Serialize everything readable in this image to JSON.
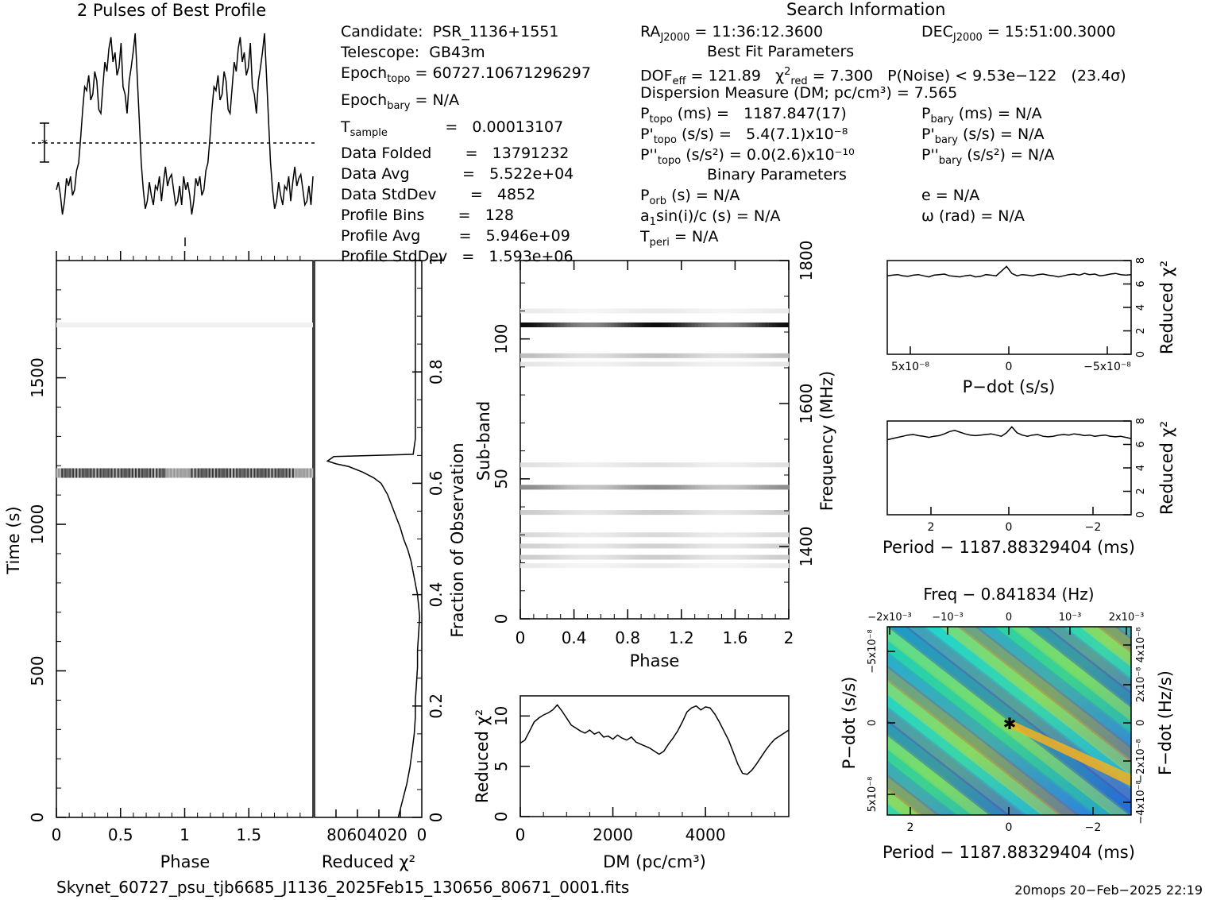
{
  "profile": {
    "title": "2 Pulses of Best Profile",
    "values": [
      0.18,
      0.22,
      0.15,
      0.05,
      0.12,
      0.24,
      0.2,
      0.25,
      0.15,
      0.18,
      0.28,
      0.32,
      0.45,
      0.6,
      0.72,
      0.7,
      0.78,
      0.65,
      0.68,
      0.8,
      0.75,
      0.6,
      0.58,
      0.72,
      0.85,
      0.8,
      0.92,
      0.98,
      0.85,
      0.9,
      0.78,
      0.82,
      0.95,
      0.72,
      0.68,
      0.58,
      0.75,
      0.82,
      0.9,
      1.0,
      0.78,
      0.55,
      0.32,
      0.18,
      0.08,
      0.12,
      0.22,
      0.15,
      0.1,
      0.2,
      0.18,
      0.25,
      0.12,
      0.22,
      0.3,
      0.2,
      0.24,
      0.26,
      0.18,
      0.1,
      0.12,
      0.2,
      0.1,
      0.25,
      0.18,
      0.22,
      0.15,
      0.05,
      0.12,
      0.24,
      0.2,
      0.25,
      0.15,
      0.18,
      0.28,
      0.32,
      0.45,
      0.6,
      0.72,
      0.7,
      0.78,
      0.65,
      0.68,
      0.8,
      0.75,
      0.6,
      0.58,
      0.72,
      0.85,
      0.8,
      0.92,
      0.98,
      0.85,
      0.9,
      0.78,
      0.82,
      0.95,
      0.72,
      0.68,
      0.58,
      0.75,
      0.82,
      0.9,
      1.0,
      0.78,
      0.55,
      0.32,
      0.18,
      0.08,
      0.12,
      0.22,
      0.15,
      0.1,
      0.2,
      0.18,
      0.25,
      0.12,
      0.22,
      0.3,
      0.2,
      0.24,
      0.26,
      0.18,
      0.1,
      0.12,
      0.2,
      0.1,
      0.25
    ]
  },
  "search_info_title": "Search Information",
  "info_col1": [
    {
      "label": "Candidate:  PSR_1136+1551"
    },
    {
      "label": "Telescope:  GB43m"
    },
    {
      "label": "Epoch",
      "sub": "topo",
      "rest": " = 60727.10671296297"
    },
    {
      "label": "Epoch",
      "sub": "bary",
      "rest": " = N/A"
    },
    {
      "label": "T",
      "sub": "sample",
      "rest": "            =   0.00013107"
    },
    {
      "label": "Data Folded       =   13791232"
    },
    {
      "label": "Data Avg           =   5.522e+04"
    },
    {
      "label": "Data StdDev       =   4852"
    },
    {
      "label": "Profile Bins       =   128"
    },
    {
      "label": "Profile Avg        =   5.946e+09"
    },
    {
      "label": "Profile StdDev   =   1.593e+06"
    }
  ],
  "ra_text": "RA",
  "ra_sub": "J2000",
  "ra_val": " = 11:36:12.3600",
  "dec_text": "DEC",
  "dec_sub": "J2000",
  "dec_val": " = 15:51:00.3000",
  "best_fit_title": "Best Fit Parameters",
  "dof_line": "DOF",
  "dof_sub": "eff",
  "dof_val": " = 121.89   χ",
  "chi_sub": "red",
  "chi_val": " = 7.300   P(Noise) < 9.53e−122   (23.4σ)",
  "dm_line": "Dispersion Measure (DM; pc/cm³) = 7.565",
  "ptopo": "P",
  "ptopo_sub": "topo",
  "ptopo_val": " (ms) =   1187.847(17)",
  "pbary": "P",
  "pbary_sub": "bary",
  "pbary_val": " (ms) = N/A",
  "pdtopo": "P'",
  "pdtopo_sub": "topo",
  "pdtopo_val": " (s/s) =   5.4(7.1)x10⁻⁸",
  "pdbary": "P'",
  "pdbary_sub": "bary",
  "pdbary_val": " (s/s) = N/A",
  "pddtopo": "P''",
  "pddtopo_sub": "topo",
  "pddtopo_val": " (s/s²) = 0.0(2.6)x10⁻¹⁰",
  "pddbary": "P''",
  "pddbary_sub": "bary",
  "pddbary_val": " (s/s²) = N/A",
  "binary_title": "Binary Parameters",
  "porb": "P",
  "porb_sub": "orb",
  "porb_val": " (s) = N/A",
  "e_line": "e = N/A",
  "asini": "a",
  "asini_sub": "1",
  "asini_val": "sin(i)/c (s) = N/A",
  "omega_line": "ω (rad) = N/A",
  "tperi": "T",
  "tperi_sub": "peri",
  "tperi_val": " = N/A",
  "filename": "Skynet_60727_psu_tjb6685_J1136_2025Feb15_130656_80671_0001.fits",
  "footer_stamp": "20mops 20−Feb−2025 22:19",
  "chart_data": [
    {
      "type": "heatmap",
      "name_panel": "time-phase",
      "xlabel": "Phase",
      "ylabel": "Time (s)",
      "xlim": [
        0,
        2
      ],
      "ylim": [
        0,
        1900
      ],
      "xticks": [
        "0",
        "0.5",
        "1",
        "1.5"
      ],
      "yticks": [
        "0",
        "500",
        "1000",
        "1500"
      ],
      "bright_time": 1175
    },
    {
      "type": "line",
      "name_panel": "reduced-chi2-vs-fraction",
      "xlabel": "Reduced χ²",
      "ylabel": "Fraction of Observation",
      "xlim": [
        100,
        0
      ],
      "ylim": [
        0,
        1
      ],
      "xtick_label": "80604020",
      "xtick_zero": "0",
      "yticks": [
        "0",
        "0.2",
        "0.4",
        "0.6",
        "0.8",
        "1"
      ],
      "x": [
        22,
        18,
        14,
        11,
        9,
        7,
        6,
        6,
        5,
        4,
        4,
        3,
        2,
        3,
        4,
        6,
        8,
        10,
        13,
        17,
        20,
        24,
        28,
        32,
        38,
        45,
        55,
        68,
        80,
        88,
        82,
        8,
        6,
        6,
        6,
        6,
        6,
        6,
        6,
        6,
        6,
        6,
        6
      ],
      "y": [
        0.0,
        0.03,
        0.06,
        0.09,
        0.12,
        0.15,
        0.18,
        0.21,
        0.24,
        0.27,
        0.3,
        0.33,
        0.36,
        0.38,
        0.4,
        0.42,
        0.44,
        0.46,
        0.48,
        0.5,
        0.52,
        0.54,
        0.56,
        0.58,
        0.6,
        0.61,
        0.62,
        0.63,
        0.635,
        0.64,
        0.648,
        0.652,
        0.68,
        0.72,
        0.76,
        0.8,
        0.84,
        0.88,
        0.9,
        0.92,
        0.95,
        0.98,
        1.0
      ]
    },
    {
      "type": "heatmap",
      "name_panel": "subband-phase",
      "xlabel": "Phase",
      "ylabel": "Sub-band",
      "ylabel2": "Frequency (MHz)",
      "xlim": [
        0,
        2
      ],
      "ylim": [
        0,
        128
      ],
      "xticks": [
        "0",
        "0.4",
        "0.8",
        "1.2",
        "1.6",
        "2"
      ],
      "yticks": [
        "0",
        "50",
        "100"
      ],
      "yticks2": [
        "1400",
        "1600",
        "1800"
      ],
      "bands": [
        {
          "band": 105,
          "strength": 0.95
        },
        {
          "band": 94,
          "strength": 0.25
        },
        {
          "band": 91,
          "strength": 0.1
        },
        {
          "band": 110,
          "strength": 0.08
        },
        {
          "band": 55,
          "strength": 0.12
        },
        {
          "band": 47,
          "strength": 0.45
        },
        {
          "band": 38,
          "strength": 0.2
        },
        {
          "band": 30,
          "strength": 0.15
        },
        {
          "band": 26,
          "strength": 0.18
        },
        {
          "band": 22,
          "strength": 0.2
        },
        {
          "band": 19,
          "strength": 0.08
        }
      ]
    },
    {
      "type": "line",
      "name_panel": "dm-curve",
      "xlabel": "DM (pc/cm³)",
      "ylabel": "Reduced χ²",
      "xlim": [
        0,
        5800
      ],
      "ylim": [
        0,
        12
      ],
      "xticks": [
        "0",
        "2000",
        "4000"
      ],
      "yticks": [
        "0",
        "5",
        "10"
      ],
      "x": [
        0,
        100,
        200,
        300,
        400,
        500,
        600,
        700,
        800,
        900,
        1000,
        1100,
        1200,
        1300,
        1400,
        1500,
        1600,
        1700,
        1800,
        1900,
        2000,
        2100,
        2200,
        2300,
        2400,
        2500,
        2600,
        2700,
        2800,
        2900,
        3000,
        3100,
        3200,
        3300,
        3400,
        3500,
        3600,
        3700,
        3800,
        3900,
        4000,
        4100,
        4200,
        4300,
        4400,
        4500,
        4600,
        4700,
        4800,
        4900,
        5000,
        5100,
        5200,
        5300,
        5400,
        5500,
        5600,
        5700,
        5800
      ],
      "y": [
        7.3,
        7.6,
        8.5,
        9.4,
        9.8,
        10.1,
        10.3,
        10.6,
        11.1,
        10.5,
        9.8,
        9.1,
        8.8,
        8.5,
        8.3,
        8.6,
        8.2,
        8.4,
        7.9,
        8.0,
        7.7,
        8.1,
        7.8,
        7.6,
        7.9,
        7.4,
        7.2,
        7.0,
        6.8,
        6.5,
        6.2,
        6.5,
        7.2,
        7.8,
        8.5,
        9.4,
        10.4,
        10.8,
        11.0,
        10.6,
        10.9,
        10.8,
        10.2,
        9.4,
        8.5,
        7.6,
        6.4,
        5.2,
        4.3,
        4.2,
        4.6,
        5.2,
        5.9,
        6.6,
        7.2,
        7.7,
        8.0,
        8.3,
        8.6
      ]
    },
    {
      "type": "line",
      "name_panel": "pdot-curve",
      "xlabel": "P−dot (s/s)",
      "ylabel": "Reduced χ²",
      "xlim": [
        -7e-08,
        7e-08
      ],
      "ylim": [
        0,
        8
      ],
      "xticks": [
        "5x10⁻⁸",
        "0",
        "−5x10⁻⁸"
      ],
      "yticks": [
        "0",
        "2",
        "4",
        "6",
        "8"
      ],
      "y": [
        6.7,
        6.75,
        6.8,
        6.7,
        6.65,
        6.75,
        6.8,
        6.7,
        6.6,
        6.75,
        6.8,
        6.85,
        6.7,
        6.65,
        6.6,
        6.7,
        6.75,
        6.6,
        6.65,
        6.8,
        6.75,
        6.7,
        7.1,
        7.5,
        6.9,
        6.7,
        6.8,
        6.75,
        6.7,
        6.8,
        6.85,
        6.75,
        6.7,
        6.6,
        6.7,
        6.8,
        6.85,
        6.75,
        6.9,
        6.8,
        6.85,
        6.7,
        6.75,
        6.85,
        6.9,
        6.8,
        6.75,
        6.8
      ]
    },
    {
      "type": "line",
      "name_panel": "period-curve",
      "xlabel": "Period − 1187.88329404 (ms)",
      "ylabel": "Reduced χ²",
      "xlim": [
        3.2,
        -3.2
      ],
      "ylim": [
        0,
        8
      ],
      "xticks": [
        "2",
        "0",
        "−2"
      ],
      "yticks": [
        "0",
        "2",
        "4",
        "6",
        "8"
      ],
      "y": [
        6.4,
        6.5,
        6.6,
        6.7,
        6.8,
        6.85,
        6.75,
        6.7,
        6.6,
        6.7,
        6.75,
        6.9,
        7.1,
        7.2,
        7.05,
        6.9,
        6.8,
        6.75,
        6.8,
        6.85,
        6.9,
        6.8,
        6.7,
        7.0,
        7.5,
        7.0,
        6.8,
        6.7,
        6.8,
        6.85,
        6.7,
        6.65,
        6.7,
        6.8,
        6.85,
        6.8,
        6.9,
        6.85,
        6.75,
        6.8,
        6.7,
        6.75,
        6.8,
        6.7,
        6.65,
        6.7,
        6.6,
        6.5
      ]
    },
    {
      "type": "heatmap",
      "name_panel": "p-pdot-plane",
      "title": "Freq − 0.841834 (Hz)",
      "xlabel": "Period − 1187.88329404 (ms)",
      "ylabel": "P−dot (s/s)",
      "ylabel2": "F−dot (Hz/s)",
      "xticks": [
        "2",
        "0",
        "−2"
      ],
      "xticks_top": [
        "−2x10⁻³",
        "−10⁻³",
        "0",
        "10⁻³",
        "2x10⁻³"
      ],
      "yticks": [
        "5x10⁻⁸",
        "0",
        "−5x10⁻⁸"
      ],
      "yticks2": [
        "−4x10⁻⁸",
        "−2x10⁻⁸",
        "0",
        "2x10⁻⁸",
        "4x10⁻⁸"
      ]
    }
  ]
}
